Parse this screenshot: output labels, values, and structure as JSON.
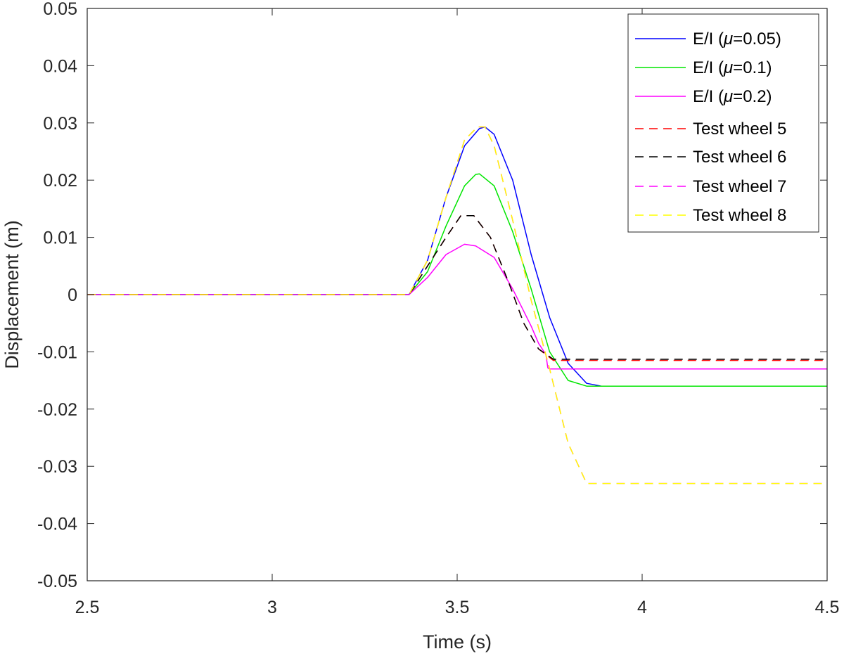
{
  "chart_data": {
    "type": "line",
    "title": "",
    "xlabel": "Time (s)",
    "ylabel": "Displacement (m)",
    "xlim": [
      2.5,
      4.5
    ],
    "ylim": [
      -0.05,
      0.05
    ],
    "xticks": [
      2.5,
      3,
      3.5,
      4,
      4.5
    ],
    "xtick_labels": [
      "2.5",
      "3",
      "3.5",
      "4",
      "4.5"
    ],
    "yticks": [
      0.05,
      0.04,
      0.03,
      0.02,
      0.01,
      0,
      -0.01,
      -0.02,
      -0.03,
      -0.04,
      -0.05
    ],
    "ytick_labels": [
      "0.05",
      "0.04",
      "0.03",
      "0.02",
      "0.01",
      "0",
      "-0.01",
      "-0.02",
      "-0.03",
      "-0.04",
      "-0.05"
    ],
    "grid": false,
    "legend_position": "top-right",
    "series": [
      {
        "name": "E/I (μ=0.05)",
        "legend_prefix": "E/I (",
        "mu_symbol": "μ",
        "legend_suffix": "=0.05)",
        "color": "#0000ff",
        "dash": "solid",
        "x": [
          2.5,
          3.0,
          3.37,
          3.42,
          3.47,
          3.52,
          3.56,
          3.575,
          3.6,
          3.65,
          3.7,
          3.75,
          3.8,
          3.85,
          3.89,
          4.0,
          4.5
        ],
        "y": [
          0,
          0,
          0,
          0.006,
          0.017,
          0.026,
          0.029,
          0.0293,
          0.028,
          0.02,
          0.007,
          -0.004,
          -0.012,
          -0.0155,
          -0.016,
          -0.016,
          -0.016
        ]
      },
      {
        "name": "E/I (μ=0.1)",
        "legend_prefix": "E/I (",
        "mu_symbol": "μ",
        "legend_suffix": "=0.1)",
        "color": "#00e600",
        "dash": "solid",
        "x": [
          2.5,
          3.0,
          3.37,
          3.42,
          3.47,
          3.52,
          3.55,
          3.56,
          3.6,
          3.65,
          3.7,
          3.75,
          3.8,
          3.85,
          4.0,
          4.5
        ],
        "y": [
          0,
          0,
          0,
          0.004,
          0.012,
          0.019,
          0.021,
          0.0211,
          0.019,
          0.011,
          0.001,
          -0.01,
          -0.015,
          -0.016,
          -0.016,
          -0.016
        ]
      },
      {
        "name": "E/I (μ=0.2)",
        "legend_prefix": "E/I (",
        "mu_symbol": "μ",
        "legend_suffix": "=0.2)",
        "color": "#ff00ff",
        "dash": "solid",
        "x": [
          2.5,
          3.0,
          3.37,
          3.42,
          3.47,
          3.52,
          3.55,
          3.6,
          3.65,
          3.7,
          3.72,
          3.74,
          3.745,
          3.75,
          4.0,
          4.5
        ],
        "y": [
          0,
          0,
          0,
          0.003,
          0.007,
          0.0088,
          0.0085,
          0.0065,
          0.001,
          -0.0055,
          -0.0085,
          -0.0105,
          -0.0128,
          -0.013,
          -0.013,
          -0.013
        ]
      },
      {
        "name": "Test wheel 5",
        "color": "#ff0000",
        "dash": "dashed",
        "x": [
          2.5,
          3.0,
          3.37,
          3.42,
          3.47,
          3.51,
          3.545,
          3.59,
          3.64,
          3.68,
          3.72,
          3.76,
          3.8,
          4.0,
          4.5
        ],
        "y": [
          0,
          0,
          0,
          0.005,
          0.01,
          0.0138,
          0.0138,
          0.01,
          0.002,
          -0.005,
          -0.0095,
          -0.0115,
          -0.0115,
          -0.0115,
          -0.0115
        ]
      },
      {
        "name": "Test wheel 6",
        "color": "#000000",
        "dash": "dashed",
        "x": [
          2.5,
          3.0,
          3.37,
          3.42,
          3.47,
          3.51,
          3.545,
          3.59,
          3.64,
          3.68,
          3.72,
          3.76,
          3.8,
          4.0,
          4.5
        ],
        "y": [
          0,
          0,
          0,
          0.005,
          0.01,
          0.0138,
          0.0138,
          0.01,
          0.002,
          -0.005,
          -0.0095,
          -0.0113,
          -0.0113,
          -0.0113,
          -0.0113
        ]
      },
      {
        "name": "Test wheel 7",
        "color": "#ff00ff",
        "dash": "dashed",
        "x": [
          2.5,
          3.0,
          3.37,
          3.42,
          3.47,
          3.52,
          3.555,
          3.575,
          3.6,
          3.65,
          3.7,
          3.75,
          3.8,
          3.85,
          4.0,
          4.5
        ],
        "y": [
          0,
          0,
          0,
          0.006,
          0.017,
          0.027,
          0.0293,
          0.0293,
          0.026,
          0.013,
          -0.001,
          -0.013,
          -0.026,
          -0.033,
          -0.033,
          -0.033
        ]
      },
      {
        "name": "Test wheel 8",
        "color": "#ffff00",
        "dash": "dashed",
        "x": [
          2.5,
          3.0,
          3.37,
          3.42,
          3.47,
          3.52,
          3.555,
          3.575,
          3.6,
          3.65,
          3.7,
          3.75,
          3.8,
          3.85,
          4.0,
          4.5
        ],
        "y": [
          0,
          0,
          0,
          0.006,
          0.017,
          0.027,
          0.0293,
          0.0293,
          0.026,
          0.013,
          -0.001,
          -0.013,
          -0.026,
          -0.033,
          -0.033,
          -0.033
        ]
      }
    ]
  }
}
